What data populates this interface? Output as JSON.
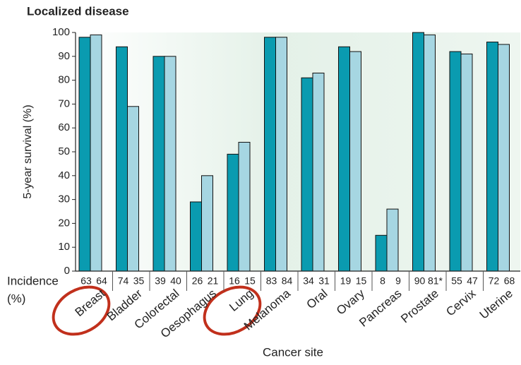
{
  "chart_data": {
    "type": "bar",
    "title": "Localized disease",
    "y_label": "5-year survival (%)",
    "x_label": "Cancer site",
    "categories": [
      "Breast",
      "Bladder",
      "Colorectal",
      "Oesophagus",
      "Lung",
      "Melanoma",
      "Oral",
      "Ovary",
      "Pancreas",
      "Prostate",
      "Cervix",
      "Uterine"
    ],
    "series": [
      {
        "color": "#0a9bb0",
        "values": [
          98,
          94,
          90,
          29,
          49,
          98,
          81,
          94,
          15,
          100,
          92,
          96
        ]
      },
      {
        "color": "#a6d6e2",
        "values": [
          99,
          69,
          90,
          40,
          54,
          98,
          83,
          92,
          26,
          99,
          91,
          95
        ]
      }
    ],
    "incidence_label": [
      "Incidence",
      "(%)"
    ],
    "incidence": [
      [
        "63",
        "64"
      ],
      [
        "74",
        "35"
      ],
      [
        "39",
        "40"
      ],
      [
        "26",
        "21"
      ],
      [
        "16",
        "15"
      ],
      [
        "83",
        "84"
      ],
      [
        "34",
        "31"
      ],
      [
        "19",
        "15"
      ],
      [
        "8",
        "9"
      ],
      [
        "90",
        "81*"
      ],
      [
        "55",
        "47"
      ],
      [
        "72",
        "68"
      ]
    ],
    "ylim": [
      0,
      100
    ],
    "yticks": [
      0,
      10,
      20,
      30,
      40,
      50,
      60,
      70,
      80,
      90,
      100
    ]
  }
}
